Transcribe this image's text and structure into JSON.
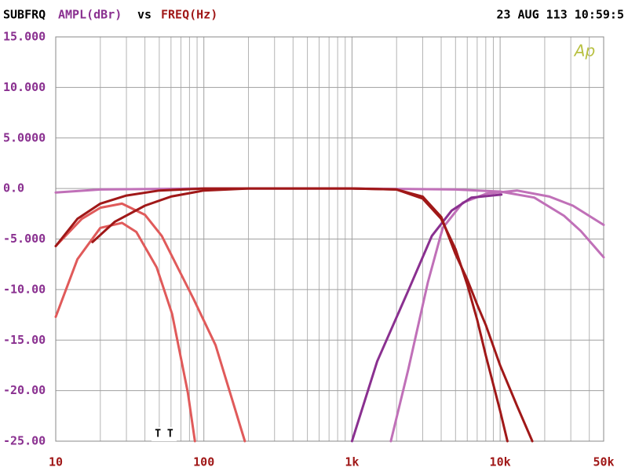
{
  "chart_data": {
    "type": "line",
    "title": "SUBFRQ",
    "ylabel": "AMPL(dBr)",
    "connector": "vs",
    "xlabel": "FREQ(Hz)",
    "timestamp": "23 AUG 113 10:59:5",
    "logo": "Ap",
    "annotation": "T T",
    "xlog": true,
    "grid": true,
    "xlim": [
      10,
      50000
    ],
    "ylim": [
      -25,
      15
    ],
    "xticks": [
      10,
      100,
      {
        "value": 1000,
        "label": "1k"
      },
      {
        "value": 10000,
        "label": "10k"
      },
      {
        "value": 50000,
        "label": "50k"
      }
    ],
    "xgrid": [
      20,
      30,
      40,
      50,
      60,
      70,
      80,
      90,
      200,
      300,
      400,
      500,
      600,
      700,
      800,
      900,
      2000,
      3000,
      4000,
      5000,
      6000,
      7000,
      8000,
      9000,
      20000,
      30000,
      40000
    ],
    "yticks": [
      {
        "value": 15,
        "label": "15.000"
      },
      {
        "value": 10,
        "label": "10.000"
      },
      {
        "value": 5,
        "label": "5.0000"
      },
      {
        "value": 0,
        "label": "0.0"
      },
      {
        "value": -5,
        "label": "-5.000"
      },
      {
        "value": -10,
        "label": "-10.00"
      },
      {
        "value": -15,
        "label": "-15.00"
      },
      {
        "value": -20,
        "label": "-20.00"
      },
      {
        "value": -25,
        "label": "-25.00"
      }
    ],
    "series": [
      {
        "color": "#e05a5a",
        "x": [
          10,
          14,
          20,
          28,
          35,
          48,
          61,
          78,
          87
        ],
        "values": [
          -12.7,
          -7.0,
          -3.9,
          -3.4,
          -4.3,
          -7.8,
          -12.4,
          -20.2,
          -25
        ]
      },
      {
        "color": "#e05a5a",
        "x": [
          10,
          15,
          20,
          28,
          40,
          52,
          85,
          120,
          189
        ],
        "values": [
          -5.7,
          -3.0,
          -1.9,
          -1.5,
          -2.6,
          -4.7,
          -10.9,
          -15.5,
          -25
        ]
      },
      {
        "color": "#c070b8",
        "x": [
          10,
          20,
          100,
          1000,
          5000,
          10000,
          17000,
          27000,
          35000,
          50000
        ],
        "values": [
          -0.4,
          -0.1,
          0,
          0,
          -0.1,
          -0.3,
          -0.9,
          -2.7,
          -4.2,
          -6.8
        ]
      },
      {
        "color": "#c070b8",
        "x": [
          1830,
          2400,
          3250,
          4100,
          5600,
          8100,
          13000,
          21500,
          31000,
          50000
        ],
        "values": [
          -25,
          -17.9,
          -9.3,
          -3.9,
          -1.4,
          -0.5,
          -0.2,
          -0.8,
          -1.7,
          -3.6
        ]
      },
      {
        "color": "#8a3090",
        "x": [
          1000,
          1480,
          2400,
          3460,
          4700,
          6400,
          10200
        ],
        "values": [
          -25,
          -17.1,
          -10.1,
          -4.7,
          -2.2,
          -0.9,
          -0.6
        ]
      },
      {
        "color": "#a01818",
        "x": [
          10,
          14,
          20,
          30,
          50,
          100,
          1000,
          2000,
          3000,
          4000,
          5000,
          6000,
          7000,
          8000,
          10000,
          11200
        ],
        "values": [
          -5.7,
          -3.0,
          -1.5,
          -0.7,
          -0.2,
          0,
          0,
          -0.1,
          -1.0,
          -3.0,
          -6.0,
          -9.5,
          -13,
          -16.5,
          -22,
          -25
        ]
      },
      {
        "color": "#a01818",
        "x": [
          17.7,
          25,
          40,
          60,
          100,
          200,
          1000,
          2000,
          3000,
          4000,
          5000,
          6000,
          7000,
          8000,
          10000,
          13000,
          16500
        ],
        "values": [
          -5.3,
          -3.3,
          -1.7,
          -0.8,
          -0.2,
          0,
          0,
          -0.1,
          -0.8,
          -2.8,
          -6.5,
          -9,
          -11.5,
          -13.5,
          -17.5,
          -21.5,
          -25
        ]
      }
    ]
  }
}
